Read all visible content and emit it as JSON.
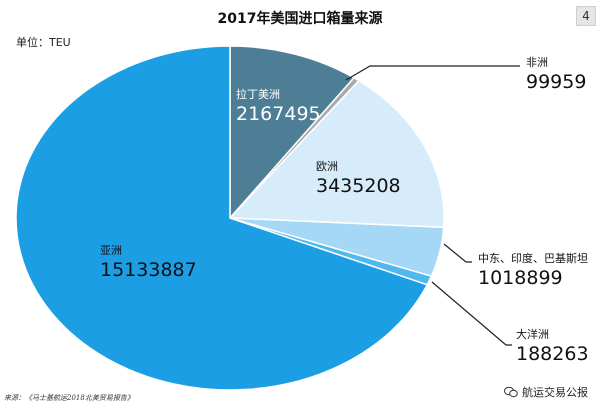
{
  "page_number": "4",
  "unit_label": "单位：TEU",
  "source_note": "来源：《马士基航运2018北美贸易报告》",
  "watermark": "航运交易公报",
  "wechat_icon": "wechat-icon",
  "chart_data": {
    "type": "pie",
    "title": "2017年美国进口箱量来源",
    "slices": [
      {
        "label": "拉丁美洲",
        "value": 2167495,
        "color": "#4e7d96"
      },
      {
        "label": "非洲",
        "value": 99959,
        "color": "#a9aaab"
      },
      {
        "label": "欧洲",
        "value": 3435208,
        "color": "#d6ecfa"
      },
      {
        "label": "中东、印度、巴基斯坦",
        "value": 1018899,
        "color": "#a5d8f7"
      },
      {
        "label": "大洋洲",
        "value": 188263,
        "color": "#4fb8ee"
      },
      {
        "label": "亚洲",
        "value": 15133887,
        "color": "#1c9ee5"
      }
    ]
  }
}
